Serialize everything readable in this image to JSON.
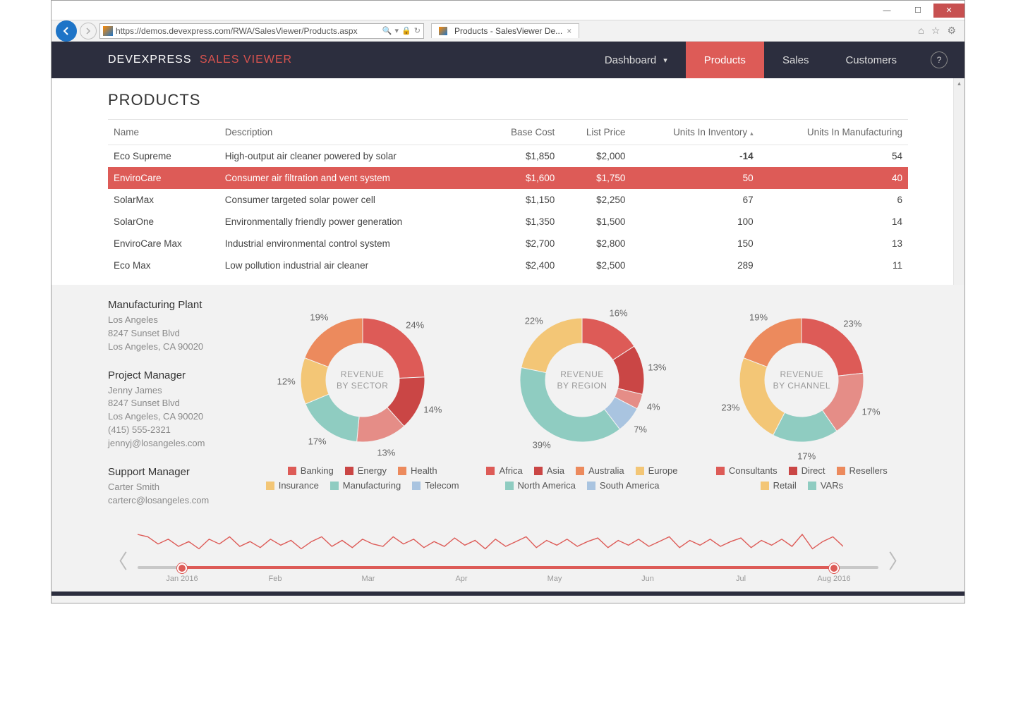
{
  "browser": {
    "url": "https://demos.devexpress.com/RWA/SalesViewer/Products.aspx",
    "tab_title": "Products - SalesViewer De..."
  },
  "navbar": {
    "brand_a": "DEVEXPRESS",
    "brand_b": "SALES VIEWER",
    "items": [
      {
        "label": "Dashboard",
        "has_dropdown": true,
        "active": false
      },
      {
        "label": "Products",
        "has_dropdown": false,
        "active": true
      },
      {
        "label": "Sales",
        "has_dropdown": false,
        "active": false
      },
      {
        "label": "Customers",
        "has_dropdown": false,
        "active": false
      }
    ],
    "help": "?"
  },
  "page": {
    "title": "PRODUCTS"
  },
  "table": {
    "columns": [
      {
        "label": "Name",
        "align": "left"
      },
      {
        "label": "Description",
        "align": "left"
      },
      {
        "label": "Base Cost",
        "align": "right"
      },
      {
        "label": "List Price",
        "align": "right"
      },
      {
        "label": "Units In Inventory",
        "align": "right",
        "sort": "asc"
      },
      {
        "label": "Units In Manufacturing",
        "align": "right"
      }
    ],
    "rows": [
      {
        "cells": [
          "Eco Supreme",
          "High-output air cleaner powered by solar",
          "$1,850",
          "$2,000",
          "-14",
          "54"
        ],
        "selected": false
      },
      {
        "cells": [
          "EnviroCare",
          "Consumer air filtration and vent system",
          "$1,600",
          "$1,750",
          "50",
          "40"
        ],
        "selected": true
      },
      {
        "cells": [
          "SolarMax",
          "Consumer targeted solar power cell",
          "$1,150",
          "$2,250",
          "67",
          "6"
        ],
        "selected": false
      },
      {
        "cells": [
          "SolarOne",
          "Environmentally friendly power generation",
          "$1,350",
          "$1,500",
          "100",
          "14"
        ],
        "selected": false
      },
      {
        "cells": [
          "EnviroCare Max",
          "Industrial environmental control system",
          "$2,700",
          "$2,800",
          "150",
          "13"
        ],
        "selected": false
      },
      {
        "cells": [
          "Eco Max",
          "Low pollution industrial air cleaner",
          "$2,400",
          "$2,500",
          "289",
          "11"
        ],
        "selected": false
      }
    ]
  },
  "contacts": {
    "plant": {
      "title": "Manufacturing Plant",
      "lines": [
        "Los Angeles",
        "8247 Sunset Blvd",
        "Los Angeles, CA 90020"
      ]
    },
    "pm": {
      "title": "Project Manager",
      "lines": [
        "Jenny James",
        "8247 Sunset Blvd",
        "Los Angeles, CA 90020",
        "(415) 555-2321",
        "jennyj@losangeles.com"
      ]
    },
    "sm": {
      "title": "Support Manager",
      "lines": [
        "Carter Smith",
        "carterc@losangeles.com"
      ]
    }
  },
  "palette": {
    "red_dark": "#ca4645",
    "red": "#dd5b57",
    "red_light": "#e58d87",
    "orange": "#ec8a5d",
    "yellow": "#f3c676",
    "teal": "#8fccc1",
    "blue": "#a9c4e0"
  },
  "donuts": {
    "inner_radius": 52,
    "outer_radius": 88,
    "label_radius": 108,
    "title_fontsize": 12,
    "title_color": "#999999",
    "charts": [
      {
        "title_line1": "REVENUE",
        "title_line2": "BY SECTOR",
        "slices": [
          {
            "label": "Banking",
            "value": 24,
            "color": "#dd5b57",
            "show_label": "24%"
          },
          {
            "label": "Energy",
            "value": 14,
            "color": "#ca4645",
            "show_label": "14%"
          },
          {
            "label": "Health",
            "value": 13,
            "color": "#e58d87",
            "show_label": "13%"
          },
          {
            "label": "Insurance",
            "value": 17,
            "color": "#8fccc1",
            "show_label": "17%"
          },
          {
            "label": "Manufacturing",
            "value": 12,
            "color": "#f3c676",
            "show_label": "12%"
          },
          {
            "label": "Telecom",
            "value": 19,
            "color": "#ec8a5d",
            "show_label": "19%"
          }
        ],
        "legend": [
          {
            "label": "Banking",
            "color": "#dd5b57"
          },
          {
            "label": "Energy",
            "color": "#ca4645"
          },
          {
            "label": "Health",
            "color": "#ec8a5d"
          },
          {
            "label": "Insurance",
            "color": "#f3c676"
          },
          {
            "label": "Manufacturing",
            "color": "#8fccc1"
          },
          {
            "label": "Telecom",
            "color": "#a9c4e0"
          }
        ]
      },
      {
        "title_line1": "REVENUE",
        "title_line2": "BY REGION",
        "slices": [
          {
            "label": "Africa",
            "value": 16,
            "color": "#dd5b57",
            "show_label": "16%"
          },
          {
            "label": "Asia",
            "value": 13,
            "color": "#ca4645",
            "show_label": "13%"
          },
          {
            "label": "Australia",
            "value": 4,
            "color": "#e58d87",
            "show_label": "4%"
          },
          {
            "label": "Europe",
            "value": 7,
            "color": "#a9c4e0",
            "show_label": "7%"
          },
          {
            "label": "North America",
            "value": 39,
            "color": "#8fccc1",
            "show_label": "39%"
          },
          {
            "label": "South America",
            "value": 22,
            "color": "#f3c676",
            "show_label": "22%"
          }
        ],
        "legend": [
          {
            "label": "Africa",
            "color": "#dd5b57"
          },
          {
            "label": "Asia",
            "color": "#ca4645"
          },
          {
            "label": "Australia",
            "color": "#ec8a5d"
          },
          {
            "label": "Europe",
            "color": "#f3c676"
          },
          {
            "label": "North America",
            "color": "#8fccc1"
          },
          {
            "label": "South America",
            "color": "#a9c4e0"
          }
        ]
      },
      {
        "title_line1": "REVENUE",
        "title_line2": "BY CHANNEL",
        "slices": [
          {
            "label": "Consultants",
            "value": 23,
            "color": "#dd5b57",
            "show_label": "23%"
          },
          {
            "label": "Direct",
            "value": 17,
            "color": "#e58d87",
            "show_label": "17%"
          },
          {
            "label": "Resellers",
            "value": 17,
            "color": "#8fccc1",
            "show_label": "17%"
          },
          {
            "label": "Retail",
            "value": 23,
            "color": "#f3c676",
            "show_label": "23%"
          },
          {
            "label": "VARs",
            "value": 19,
            "color": "#ec8a5d",
            "show_label": "19%"
          }
        ],
        "legend": [
          {
            "label": "Consultants",
            "color": "#dd5b57"
          },
          {
            "label": "Direct",
            "color": "#ca4645"
          },
          {
            "label": "Resellers",
            "color": "#ec8a5d"
          },
          {
            "label": "Retail",
            "color": "#f3c676"
          },
          {
            "label": "VARs",
            "color": "#8fccc1"
          }
        ]
      }
    ]
  },
  "timeline": {
    "color": "#dd5b57",
    "ticks": [
      "Jan 2016",
      "Feb",
      "Mar",
      "Apr",
      "May",
      "Jun",
      "Jul",
      "Aug 2016"
    ],
    "range_start_pct": 6,
    "range_end_pct": 94,
    "spark": [
      20,
      18,
      12,
      16,
      10,
      14,
      8,
      16,
      12,
      18,
      10,
      14,
      9,
      16,
      11,
      15,
      8,
      14,
      18,
      10,
      15,
      9,
      16,
      12,
      10,
      18,
      12,
      16,
      9,
      14,
      10,
      17,
      11,
      15,
      8,
      16,
      10,
      14,
      18,
      9,
      15,
      11,
      16,
      10,
      14,
      17,
      9,
      15,
      11,
      16,
      10,
      14,
      18,
      9,
      15,
      11,
      16,
      10,
      14,
      17,
      9,
      15,
      11,
      16,
      10,
      20,
      8,
      14,
      18,
      10
    ]
  }
}
